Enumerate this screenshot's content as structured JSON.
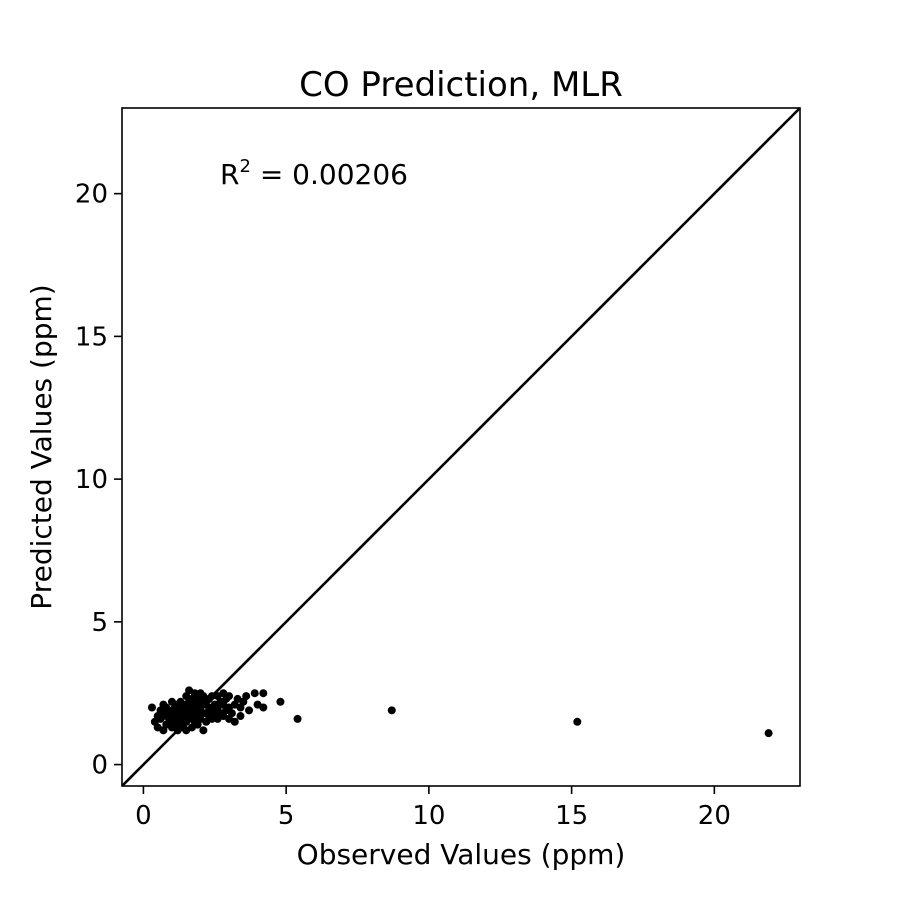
{
  "chart_data": {
    "type": "scatter",
    "title": "CO Prediction, MLR",
    "xlabel": "Observed Values (ppm)",
    "ylabel": "Predicted Values (ppm)",
    "xlim": [
      -0.75,
      23
    ],
    "ylim": [
      -0.75,
      23
    ],
    "xticks": [
      0,
      5,
      10,
      15,
      20
    ],
    "yticks": [
      0,
      5,
      10,
      15,
      20
    ],
    "xtick_labels": [
      "0",
      "5",
      "10",
      "15",
      "20"
    ],
    "ytick_labels": [
      "0",
      "5",
      "10",
      "15",
      "20"
    ],
    "grid": false,
    "reference_line": "y = x",
    "annotation": {
      "prefix": "R",
      "sup": "2",
      "rest": " = 0.00206"
    },
    "marker_color": "#000000",
    "line_color": "#000000",
    "series": [
      {
        "points": [
          [
            0.3,
            2.0
          ],
          [
            0.4,
            1.5
          ],
          [
            0.5,
            1.7
          ],
          [
            0.5,
            1.3
          ],
          [
            0.6,
            1.6
          ],
          [
            0.6,
            1.9
          ],
          [
            0.7,
            1.2
          ],
          [
            0.7,
            1.8
          ],
          [
            0.7,
            2.1
          ],
          [
            0.8,
            1.4
          ],
          [
            0.8,
            1.7
          ],
          [
            0.8,
            2.0
          ],
          [
            0.9,
            1.5
          ],
          [
            0.9,
            1.8
          ],
          [
            1.0,
            1.3
          ],
          [
            1.0,
            1.6
          ],
          [
            1.0,
            1.9
          ],
          [
            1.0,
            2.2
          ],
          [
            1.1,
            1.4
          ],
          [
            1.1,
            1.7
          ],
          [
            1.1,
            2.0
          ],
          [
            1.2,
            1.2
          ],
          [
            1.2,
            1.5
          ],
          [
            1.2,
            1.8
          ],
          [
            1.2,
            2.1
          ],
          [
            1.3,
            1.3
          ],
          [
            1.3,
            1.6
          ],
          [
            1.3,
            1.9
          ],
          [
            1.3,
            2.2
          ],
          [
            1.4,
            1.4
          ],
          [
            1.4,
            1.7
          ],
          [
            1.4,
            2.0
          ],
          [
            1.5,
            1.2
          ],
          [
            1.5,
            1.5
          ],
          [
            1.5,
            1.8
          ],
          [
            1.5,
            2.1
          ],
          [
            1.5,
            2.4
          ],
          [
            1.6,
            1.6
          ],
          [
            1.6,
            1.9
          ],
          [
            1.6,
            2.2
          ],
          [
            1.6,
            2.6
          ],
          [
            1.7,
            1.3
          ],
          [
            1.7,
            1.7
          ],
          [
            1.7,
            2.0
          ],
          [
            1.7,
            2.3
          ],
          [
            1.8,
            1.5
          ],
          [
            1.8,
            1.8
          ],
          [
            1.8,
            2.1
          ],
          [
            1.8,
            2.5
          ],
          [
            1.9,
            1.4
          ],
          [
            1.9,
            1.7
          ],
          [
            1.9,
            2.0
          ],
          [
            1.9,
            2.3
          ],
          [
            2.0,
            1.6
          ],
          [
            2.0,
            1.9
          ],
          [
            2.0,
            2.2
          ],
          [
            2.0,
            2.5
          ],
          [
            2.1,
            1.2
          ],
          [
            2.1,
            1.8
          ],
          [
            2.1,
            2.1
          ],
          [
            2.1,
            2.4
          ],
          [
            2.2,
            1.5
          ],
          [
            2.2,
            1.8
          ],
          [
            2.2,
            2.2
          ],
          [
            2.3,
            1.7
          ],
          [
            2.3,
            2.0
          ],
          [
            2.3,
            2.3
          ],
          [
            2.4,
            1.6
          ],
          [
            2.4,
            1.9
          ],
          [
            2.4,
            2.4
          ],
          [
            2.5,
            1.8
          ],
          [
            2.5,
            2.1
          ],
          [
            2.6,
            1.6
          ],
          [
            2.6,
            2.0
          ],
          [
            2.6,
            2.4
          ],
          [
            2.7,
            1.8
          ],
          [
            2.7,
            2.2
          ],
          [
            2.8,
            1.7
          ],
          [
            2.8,
            2.1
          ],
          [
            2.8,
            2.5
          ],
          [
            2.9,
            1.9
          ],
          [
            2.9,
            2.3
          ],
          [
            3.0,
            1.6
          ],
          [
            3.0,
            2.0
          ],
          [
            3.0,
            2.4
          ],
          [
            3.1,
            1.8
          ],
          [
            3.2,
            2.1
          ],
          [
            3.2,
            1.5
          ],
          [
            3.3,
            2.3
          ],
          [
            3.4,
            1.7
          ],
          [
            3.4,
            2.0
          ],
          [
            3.5,
            2.2
          ],
          [
            3.6,
            2.4
          ],
          [
            3.7,
            1.9
          ],
          [
            3.9,
            2.5
          ],
          [
            4.0,
            2.1
          ],
          [
            4.2,
            2.0
          ],
          [
            4.2,
            2.5
          ],
          [
            4.8,
            2.2
          ],
          [
            5.4,
            1.6
          ],
          [
            8.7,
            1.9
          ],
          [
            15.2,
            1.5
          ],
          [
            21.9,
            1.1
          ]
        ]
      }
    ]
  }
}
